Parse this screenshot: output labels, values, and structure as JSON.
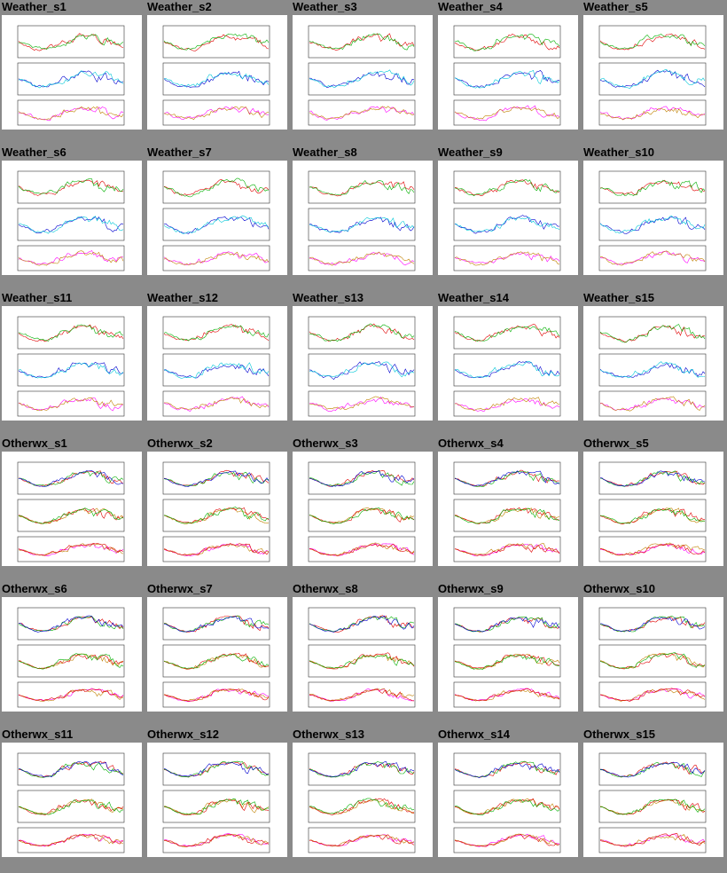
{
  "rows": [
    [
      "Weather_s1",
      "Weather_s2",
      "Weather_s3",
      "Weather_s4",
      "Weather_s5"
    ],
    [
      "Weather_s6",
      "Weather_s7",
      "Weather_s8",
      "Weather_s9",
      "Weather_s10"
    ],
    [
      "Weather_s11",
      "Weather_s12",
      "Weather_s13",
      "Weather_s14",
      "Weather_s15"
    ],
    [
      "Otherwx_s1",
      "Otherwx_s2",
      "Otherwx_s3",
      "Otherwx_s4",
      "Otherwx_s5"
    ],
    [
      "Otherwx_s6",
      "Otherwx_s7",
      "Otherwx_s8",
      "Otherwx_s9",
      "Otherwx_s10"
    ],
    [
      "Otherwx_s11",
      "Otherwx_s12",
      "Otherwx_s13",
      "Otherwx_s14",
      "Otherwx_s15"
    ]
  ],
  "colors": {
    "page_bg": "#8a8a8a",
    "series": [
      "#e00000",
      "#00b000",
      "#0000d0",
      "#00c8d8",
      "#ff00ff",
      "#c08000"
    ]
  }
}
